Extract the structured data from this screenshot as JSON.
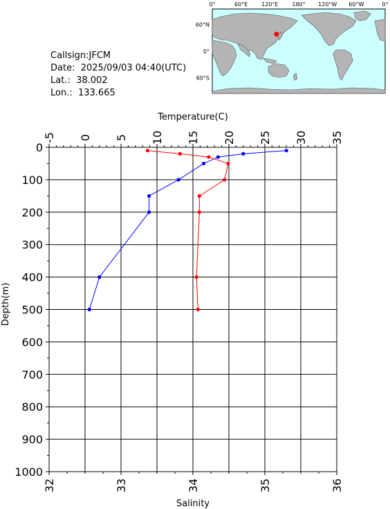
{
  "info": {
    "callsign": "Callsign:JFCM",
    "date": "Date:  2025/09/03 04:40(UTC)",
    "lat": "Lat.:  38.002",
    "lon": "Lon.:  133.665"
  },
  "map": {
    "lon_labels": [
      "0°",
      "60°E",
      "120°E",
      "180°",
      "120°W",
      "60°W",
      "0°"
    ],
    "lat_labels": [
      "60°N",
      "0°",
      "60°S"
    ],
    "ocean_color": "#ccffff",
    "land_color": "#b4b4b4",
    "marker": {
      "lat": 38.002,
      "lon": 133.665,
      "color": "#ff0000"
    }
  },
  "chart_data": {
    "type": "line",
    "title": "",
    "xlabel_top": "Temperature(C)",
    "xlabel_bottom": "Salinity",
    "ylabel": "Depth(m)",
    "temperature_range": [
      -5,
      35
    ],
    "salinity_range": [
      32,
      36
    ],
    "depth_range": [
      0,
      1000
    ],
    "temperature_ticks": [
      "-5",
      "0",
      "5",
      "10",
      "15",
      "20",
      "25",
      "30",
      "35"
    ],
    "salinity_ticks": [
      "32",
      "33",
      "34",
      "35",
      "36"
    ],
    "depth_ticks": [
      "0",
      "100",
      "200",
      "300",
      "400",
      "500",
      "600",
      "700",
      "800",
      "900",
      "1000"
    ],
    "grid": true,
    "series": [
      {
        "axis": "temperature",
        "color": "#0000ff",
        "depth": [
          10,
          20,
          30,
          50,
          100,
          150,
          200,
          400,
          500
        ],
        "values": [
          28.0,
          22.0,
          18.5,
          16.5,
          13.0,
          8.9,
          8.9,
          2.0,
          0.6
        ]
      },
      {
        "axis": "salinity",
        "color": "#ff0000",
        "depth": [
          10,
          20,
          30,
          50,
          100,
          150,
          200,
          400,
          500
        ],
        "values": [
          33.37,
          33.82,
          34.22,
          34.49,
          34.44,
          34.09,
          34.09,
          34.05,
          34.07
        ]
      }
    ]
  }
}
